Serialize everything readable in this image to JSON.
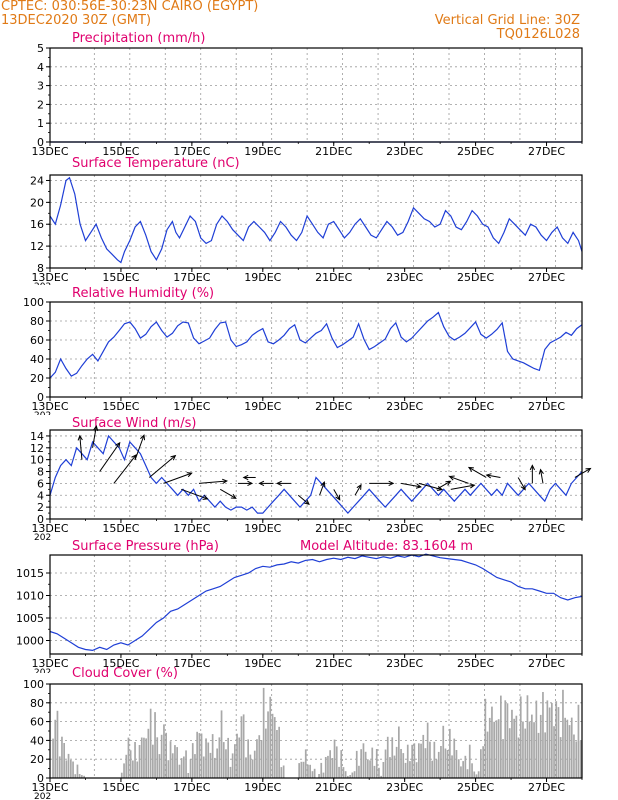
{
  "header": {
    "line1_left": "CPTEC:   030:56E-30:23N   CAIRO (EGYPT)",
    "line2_left": "13DEC2020 30Z (GMT)",
    "line1_right": "Vertical Grid Line: 30Z",
    "line2_right": "TQ0126L028"
  },
  "colors": {
    "frame": "#000000",
    "grid": "#9a9a9a",
    "series": "#1f3fd6",
    "title": "#e0006e",
    "header": "#e07a16",
    "cloud_fill": "#a8a8a8",
    "wind_arrow": "#000000"
  },
  "x_axis": {
    "tick_labels": [
      "13DEC",
      "15DEC",
      "17DEC",
      "19DEC",
      "21DEC",
      "23DEC",
      "25DEC",
      "27DEC"
    ],
    "year_fragment": "202",
    "start_day": 13,
    "end_day": 28,
    "tick_step_days": 2
  },
  "chart_data": [
    {
      "id": "precip",
      "type": "line",
      "title": "Precipitation (mm/h)",
      "ylim": [
        0,
        5
      ],
      "yticks": [
        0,
        1,
        2,
        3,
        4,
        5
      ],
      "grid": true,
      "x": [
        13,
        28
      ],
      "values": [
        0,
        0
      ]
    },
    {
      "id": "temp",
      "type": "line",
      "title": "Surface Temperature (nC)",
      "ylim": [
        8,
        25
      ],
      "yticks": [
        8,
        12,
        16,
        20,
        24
      ],
      "grid": true,
      "x": [
        13.0,
        13.15,
        13.3,
        13.45,
        13.55,
        13.7,
        13.85,
        14.0,
        14.15,
        14.3,
        14.45,
        14.6,
        14.75,
        14.9,
        15.0,
        15.1,
        15.25,
        15.4,
        15.55,
        15.7,
        15.85,
        16.0,
        16.15,
        16.3,
        16.45,
        16.55,
        16.65,
        16.8,
        16.95,
        17.1,
        17.25,
        17.4,
        17.55,
        17.7,
        17.85,
        18.0,
        18.15,
        18.3,
        18.45,
        18.6,
        18.75,
        18.9,
        19.05,
        19.2,
        19.35,
        19.5,
        19.65,
        19.8,
        19.95,
        20.1,
        20.25,
        20.4,
        20.55,
        20.7,
        20.85,
        21.0,
        21.15,
        21.3,
        21.45,
        21.6,
        21.75,
        21.9,
        22.05,
        22.2,
        22.35,
        22.5,
        22.65,
        22.8,
        22.95,
        23.1,
        23.25,
        23.4,
        23.55,
        23.7,
        23.85,
        24.0,
        24.15,
        24.3,
        24.45,
        24.6,
        24.75,
        24.9,
        25.05,
        25.2,
        25.35,
        25.5,
        25.65,
        25.8,
        25.95,
        26.1,
        26.25,
        26.4,
        26.55,
        26.7,
        26.85,
        27.0,
        27.15,
        27.3,
        27.45,
        27.6,
        27.75,
        27.9,
        28.0
      ],
      "values": [
        17.5,
        16.0,
        19.5,
        24.0,
        24.5,
        21.5,
        16.0,
        13.0,
        14.5,
        16.0,
        13.5,
        11.5,
        10.5,
        9.5,
        9.0,
        11.0,
        13.0,
        15.5,
        16.5,
        14.0,
        11.0,
        9.5,
        11.5,
        15.0,
        16.5,
        14.5,
        13.5,
        15.5,
        17.5,
        16.5,
        13.5,
        12.5,
        13.0,
        16.0,
        17.5,
        16.5,
        15.0,
        14.0,
        13.0,
        15.5,
        16.5,
        15.5,
        14.5,
        13.0,
        14.5,
        16.5,
        15.5,
        14.0,
        13.0,
        14.5,
        17.5,
        16.0,
        14.5,
        13.5,
        16.0,
        16.5,
        15.0,
        13.5,
        14.5,
        16.0,
        17.0,
        15.5,
        14.0,
        13.5,
        15.0,
        16.5,
        15.5,
        14.0,
        14.5,
        16.5,
        19.0,
        18.0,
        17.0,
        16.5,
        15.5,
        16.0,
        18.5,
        17.5,
        15.5,
        15.0,
        16.5,
        18.5,
        17.5,
        16.0,
        15.5,
        13.5,
        12.5,
        14.5,
        17.0,
        16.0,
        15.0,
        14.0,
        16.0,
        15.5,
        14.0,
        13.0,
        14.5,
        15.5,
        13.5,
        12.5,
        14.5,
        13.0,
        11.0
      ]
    },
    {
      "id": "rh",
      "type": "line",
      "title": "Relative Humidity (%)",
      "ylim": [
        0,
        100
      ],
      "yticks": [
        0,
        20,
        40,
        60,
        80,
        100
      ],
      "grid": true,
      "x": [
        13.0,
        13.15,
        13.3,
        13.45,
        13.6,
        13.75,
        13.9,
        14.05,
        14.2,
        14.35,
        14.5,
        14.65,
        14.8,
        14.95,
        15.1,
        15.25,
        15.4,
        15.55,
        15.7,
        15.85,
        16.0,
        16.15,
        16.3,
        16.45,
        16.6,
        16.75,
        16.9,
        17.05,
        17.2,
        17.35,
        17.5,
        17.65,
        17.8,
        17.95,
        18.1,
        18.25,
        18.4,
        18.55,
        18.7,
        18.85,
        19.0,
        19.15,
        19.3,
        19.45,
        19.6,
        19.75,
        19.9,
        20.05,
        20.2,
        20.35,
        20.5,
        20.65,
        20.8,
        20.95,
        21.1,
        21.25,
        21.4,
        21.55,
        21.7,
        21.85,
        22.0,
        22.15,
        22.3,
        22.45,
        22.6,
        22.75,
        22.9,
        23.05,
        23.2,
        23.35,
        23.5,
        23.65,
        23.8,
        23.95,
        24.1,
        24.25,
        24.4,
        24.55,
        24.7,
        24.85,
        25.0,
        25.15,
        25.3,
        25.45,
        25.6,
        25.75,
        25.9,
        26.05,
        26.2,
        26.35,
        26.5,
        26.65,
        26.8,
        26.95,
        27.1,
        27.25,
        27.4,
        27.55,
        27.7,
        27.85,
        28.0
      ],
      "values": [
        20,
        26,
        40,
        30,
        22,
        25,
        33,
        40,
        45,
        38,
        48,
        58,
        63,
        70,
        77,
        79,
        72,
        62,
        66,
        74,
        79,
        70,
        63,
        67,
        75,
        79,
        78,
        62,
        56,
        59,
        62,
        71,
        78,
        79,
        60,
        53,
        55,
        58,
        65,
        69,
        72,
        58,
        56,
        60,
        65,
        72,
        76,
        60,
        57,
        62,
        67,
        70,
        77,
        62,
        52,
        55,
        59,
        63,
        77,
        61,
        50,
        53,
        57,
        61,
        72,
        78,
        63,
        58,
        62,
        68,
        74,
        80,
        84,
        89,
        74,
        64,
        60,
        63,
        67,
        73,
        79,
        66,
        62,
        66,
        71,
        78,
        48,
        40,
        38,
        36,
        33,
        30,
        28,
        50,
        57,
        60,
        63,
        68,
        65,
        72,
        76
      ]
    },
    {
      "id": "wind",
      "type": "line",
      "title": "Surface Wind (m/s)",
      "ylim": [
        0,
        15
      ],
      "yticks": [
        0,
        2,
        4,
        6,
        8,
        10,
        12,
        14
      ],
      "grid": true,
      "x": [
        13.0,
        13.15,
        13.3,
        13.45,
        13.6,
        13.75,
        13.9,
        14.05,
        14.2,
        14.35,
        14.5,
        14.65,
        14.8,
        14.95,
        15.1,
        15.25,
        15.4,
        15.55,
        15.7,
        15.85,
        16.0,
        16.15,
        16.3,
        16.45,
        16.6,
        16.75,
        16.9,
        17.05,
        17.2,
        17.35,
        17.5,
        17.65,
        17.8,
        17.95,
        18.1,
        18.25,
        18.4,
        18.55,
        18.7,
        18.85,
        19.0,
        19.15,
        19.3,
        19.45,
        19.6,
        19.75,
        19.9,
        20.05,
        20.2,
        20.35,
        20.5,
        20.65,
        20.8,
        20.95,
        21.1,
        21.25,
        21.4,
        21.55,
        21.7,
        21.85,
        22.0,
        22.15,
        22.3,
        22.45,
        22.6,
        22.75,
        22.9,
        23.05,
        23.2,
        23.35,
        23.5,
        23.65,
        23.8,
        23.95,
        24.1,
        24.25,
        24.4,
        24.55,
        24.7,
        24.85,
        25.0,
        25.15,
        25.3,
        25.45,
        25.6,
        25.75,
        25.9,
        26.05,
        26.2,
        26.35,
        26.5,
        26.65,
        26.8,
        26.95,
        27.1,
        27.25,
        27.4,
        27.55,
        27.7,
        27.85,
        28.0
      ],
      "values": [
        4,
        7,
        9,
        10,
        9,
        12,
        11,
        10,
        13,
        12,
        11,
        14,
        13,
        12,
        10,
        13,
        12,
        11,
        9,
        7,
        6,
        7,
        6,
        5,
        4,
        5,
        4,
        5,
        3,
        4,
        3,
        2,
        3,
        2,
        1.5,
        2,
        2,
        1.5,
        2,
        1,
        1,
        2,
        3,
        4,
        5,
        4,
        3,
        2,
        3,
        4,
        7,
        6,
        5,
        4,
        3,
        2,
        1,
        2,
        3,
        4,
        5,
        4,
        3,
        2,
        3,
        4,
        5,
        4,
        3,
        4,
        5,
        6,
        5,
        4,
        5,
        4,
        3,
        4,
        5,
        4,
        5,
        6,
        5,
        4,
        5,
        4,
        6,
        5,
        4,
        5,
        6,
        5,
        4,
        3,
        5,
        6,
        5,
        4,
        6,
        7,
        8
      ],
      "arrows": [
        {
          "x": 13.9,
          "y": 10,
          "dir_deg": 95,
          "len": 24
        },
        {
          "x": 14.2,
          "y": 12,
          "dir_deg": 80,
          "len": 22
        },
        {
          "x": 14.4,
          "y": 8,
          "dir_deg": 55,
          "len": 35
        },
        {
          "x": 14.8,
          "y": 6,
          "dir_deg": 52,
          "len": 36
        },
        {
          "x": 15.4,
          "y": 10,
          "dir_deg": 70,
          "len": 26
        },
        {
          "x": 15.8,
          "y": 7,
          "dir_deg": 40,
          "len": 34
        },
        {
          "x": 16.2,
          "y": 6,
          "dir_deg": 20,
          "len": 30
        },
        {
          "x": 16.7,
          "y": 5,
          "dir_deg": -20,
          "len": 28
        },
        {
          "x": 17.2,
          "y": 6,
          "dir_deg": 5,
          "len": 28
        },
        {
          "x": 17.8,
          "y": 5,
          "dir_deg": -30,
          "len": 18
        },
        {
          "x": 18.3,
          "y": 6,
          "dir_deg": 0,
          "len": 14
        },
        {
          "x": 18.8,
          "y": 7,
          "dir_deg": 180,
          "len": 12
        },
        {
          "x": 19.3,
          "y": 6,
          "dir_deg": 180,
          "len": 14
        },
        {
          "x": 19.8,
          "y": 6,
          "dir_deg": 180,
          "len": 14
        },
        {
          "x": 20.0,
          "y": 4,
          "dir_deg": -40,
          "len": 14
        },
        {
          "x": 20.6,
          "y": 4,
          "dir_deg": 70,
          "len": 14
        },
        {
          "x": 21.0,
          "y": 5,
          "dir_deg": -60,
          "len": 12
        },
        {
          "x": 21.6,
          "y": 4,
          "dir_deg": 60,
          "len": 12
        },
        {
          "x": 22.0,
          "y": 6,
          "dir_deg": 0,
          "len": 24
        },
        {
          "x": 22.9,
          "y": 6,
          "dir_deg": -10,
          "len": 20
        },
        {
          "x": 23.4,
          "y": 6,
          "dir_deg": -15,
          "len": 24
        },
        {
          "x": 23.9,
          "y": 5,
          "dir_deg": 30,
          "len": 16
        },
        {
          "x": 24.3,
          "y": 5,
          "dir_deg": 10,
          "len": 24
        },
        {
          "x": 24.8,
          "y": 6,
          "dir_deg": 160,
          "len": 20
        },
        {
          "x": 25.3,
          "y": 7,
          "dir_deg": 150,
          "len": 20
        },
        {
          "x": 25.7,
          "y": 7,
          "dir_deg": 170,
          "len": 14
        },
        {
          "x": 26.2,
          "y": 7,
          "dir_deg": -60,
          "len": 14
        },
        {
          "x": 26.6,
          "y": 6,
          "dir_deg": 90,
          "len": 18
        },
        {
          "x": 26.9,
          "y": 6,
          "dir_deg": 100,
          "len": 14
        },
        {
          "x": 27.8,
          "y": 7,
          "dir_deg": 30,
          "len": 18
        }
      ]
    },
    {
      "id": "pres",
      "type": "line",
      "title": "Surface Pressure (hPa)",
      "annotation": "Model Altitude: 83.1604 m",
      "ylim": [
        997,
        1019
      ],
      "yticks": [
        1000,
        1005,
        1010,
        1015
      ],
      "grid": true,
      "x": [
        13.0,
        13.2,
        13.4,
        13.6,
        13.8,
        14.0,
        14.2,
        14.4,
        14.6,
        14.8,
        15.0,
        15.2,
        15.4,
        15.6,
        15.8,
        16.0,
        16.2,
        16.4,
        16.6,
        16.8,
        17.0,
        17.2,
        17.4,
        17.6,
        17.8,
        18.0,
        18.2,
        18.4,
        18.6,
        18.8,
        19.0,
        19.2,
        19.4,
        19.6,
        19.8,
        20.0,
        20.2,
        20.4,
        20.6,
        20.8,
        21.0,
        21.2,
        21.4,
        21.6,
        21.8,
        22.0,
        22.2,
        22.4,
        22.6,
        22.8,
        23.0,
        23.2,
        23.4,
        23.6,
        23.8,
        24.0,
        24.2,
        24.4,
        24.6,
        24.8,
        25.0,
        25.2,
        25.4,
        25.6,
        25.8,
        26.0,
        26.2,
        26.4,
        26.6,
        26.8,
        27.0,
        27.2,
        27.4,
        27.6,
        27.8,
        28.0
      ],
      "values": [
        1002,
        1001.5,
        1000.5,
        999.5,
        998.5,
        998,
        997.8,
        998.5,
        998,
        999,
        999.5,
        999,
        1000,
        1001,
        1002.5,
        1004,
        1005,
        1006.5,
        1007,
        1008,
        1009,
        1010,
        1011,
        1011.5,
        1012,
        1013,
        1014,
        1014.5,
        1015,
        1016,
        1016.5,
        1016.3,
        1016.8,
        1017,
        1017.5,
        1017.2,
        1017.8,
        1018,
        1017.5,
        1018,
        1018.3,
        1018,
        1018.5,
        1018.2,
        1018.8,
        1018.5,
        1018.2,
        1018.6,
        1018.3,
        1018.8,
        1018.5,
        1019,
        1018.6,
        1019.2,
        1018.8,
        1018.4,
        1018.2,
        1018,
        1017.8,
        1017.3,
        1016.8,
        1016,
        1015,
        1014,
        1013.5,
        1013,
        1012,
        1011.5,
        1011.5,
        1011,
        1010.5,
        1010.5,
        1009.5,
        1009,
        1009.5,
        1009.8
      ]
    },
    {
      "id": "cloud",
      "type": "bar",
      "title": "Cloud Cover (%)",
      "ylim": [
        0,
        100
      ],
      "yticks": [
        0,
        20,
        40,
        60,
        80,
        100
      ],
      "grid": true,
      "knots_x": [
        13.0,
        13.1,
        13.25,
        13.5,
        13.75,
        14.0,
        14.4,
        14.7,
        14.95,
        15.05,
        15.2,
        15.35,
        15.5,
        15.6,
        15.75,
        15.9,
        16.05,
        16.2,
        16.35,
        16.5,
        16.6,
        16.75,
        16.9,
        17.05,
        17.2,
        17.35,
        17.5,
        17.65,
        17.8,
        17.95,
        18.1,
        18.25,
        18.4,
        18.55,
        18.7,
        18.85,
        19.0,
        19.15,
        19.3,
        19.45,
        19.6,
        19.8,
        19.95,
        20.1,
        20.3,
        20.5,
        20.65,
        20.8,
        21.0,
        21.2,
        21.4,
        21.6,
        21.8,
        22.0,
        22.15,
        22.3,
        22.5,
        22.65,
        22.8,
        23.0,
        23.15,
        23.3,
        23.45,
        23.6,
        23.75,
        23.9,
        24.05,
        24.2,
        24.35,
        24.5,
        24.65,
        24.8,
        24.95,
        25.05,
        25.15,
        25.3,
        25.5,
        25.7,
        25.9,
        26.1,
        26.3,
        26.5,
        26.7,
        26.9,
        27.1,
        27.3,
        27.5,
        27.65,
        27.8,
        28.0
      ],
      "knots_y": [
        0,
        95,
        55,
        30,
        10,
        0,
        0,
        0,
        0,
        20,
        50,
        30,
        45,
        55,
        70,
        85,
        40,
        75,
        30,
        55,
        20,
        35,
        15,
        50,
        65,
        40,
        55,
        30,
        80,
        45,
        25,
        60,
        85,
        40,
        30,
        55,
        90,
        100,
        95,
        50,
        0,
        0,
        0,
        35,
        20,
        0,
        15,
        30,
        45,
        25,
        0,
        20,
        45,
        25,
        40,
        0,
        55,
        35,
        60,
        25,
        45,
        35,
        50,
        65,
        40,
        30,
        60,
        45,
        55,
        25,
        20,
        35,
        10,
        0,
        55,
        90,
        85,
        90,
        95,
        80,
        88,
        92,
        85,
        95,
        100,
        90,
        95,
        75,
        65,
        85
      ]
    }
  ]
}
